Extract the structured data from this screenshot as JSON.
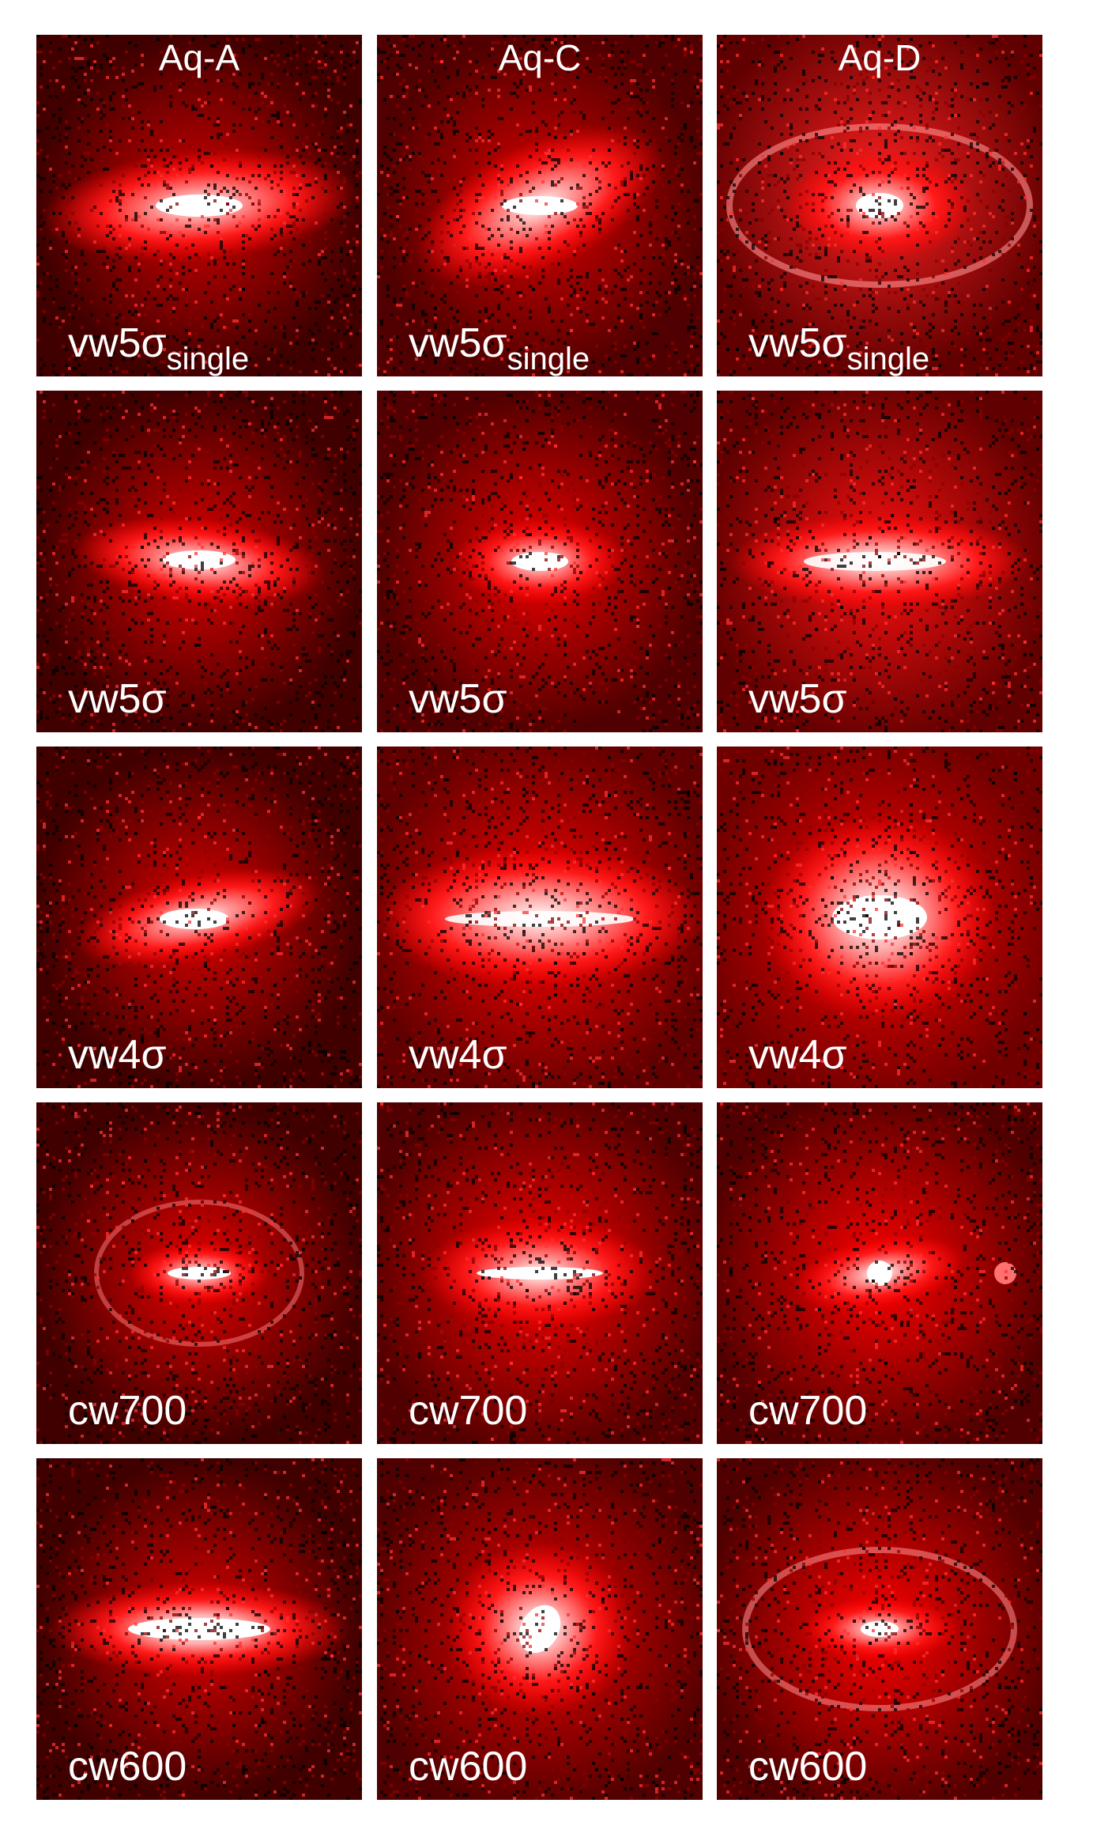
{
  "columns": [
    "Aq-A",
    "Aq-C",
    "Aq-D"
  ],
  "rows": [
    {
      "label": "vw5σ",
      "subscript": "single"
    },
    {
      "label": "vw5σ",
      "subscript": ""
    },
    {
      "label": "vw4σ",
      "subscript": ""
    },
    {
      "label": "cw700",
      "subscript": ""
    },
    {
      "label": "cw600",
      "subscript": ""
    }
  ],
  "colors": {
    "background": "#ffffff",
    "panel_base": "#000000",
    "emission": "#ff0000",
    "core": "#ffffff"
  }
}
